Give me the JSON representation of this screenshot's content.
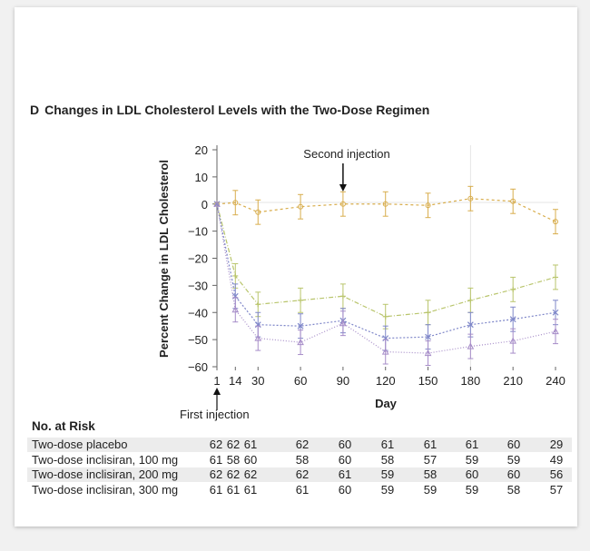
{
  "panel_letter": "D",
  "title": "Changes in LDL Cholesterol Levels with the Two-Dose Regimen",
  "chart_data": {
    "type": "line",
    "title": "Changes in LDL Cholesterol Levels with the Two-Dose Regimen",
    "xlabel": "Day",
    "ylabel": "Percent Change in LDL Cholesterol",
    "x": [
      1,
      14,
      30,
      60,
      90,
      120,
      150,
      180,
      210,
      240
    ],
    "xticks": [
      "1",
      "14",
      "30",
      "60",
      "90",
      "120",
      "150",
      "180",
      "210",
      "240"
    ],
    "yticks": [
      "20",
      "10",
      "0",
      "−10",
      "−20",
      "−30",
      "−40",
      "−50",
      "−60"
    ],
    "ylim": [
      -60,
      20
    ],
    "grid": false,
    "annotations": [
      "Second injection",
      "First injection"
    ],
    "series": [
      {
        "marker": "circle",
        "color": "#d8ad4c",
        "values": [
          0,
          0.5,
          -3,
          -1,
          0,
          0,
          -0.5,
          2,
          1,
          -6.5
        ],
        "error": 4.5
      },
      {
        "marker": "plus",
        "color": "#b9c56c",
        "values": [
          0,
          -26.5,
          -37,
          -35.5,
          -34,
          -41.5,
          -40,
          -35.5,
          -31.5,
          -27
        ],
        "error": 4.5
      },
      {
        "marker": "x",
        "color": "#7f87c9",
        "values": [
          0,
          -34,
          -44.5,
          -45,
          -43,
          -49.5,
          -49,
          -44.5,
          -42.5,
          -40
        ],
        "error": 4.5
      },
      {
        "marker": "triangle",
        "color": "#a68cc8",
        "values": [
          0,
          -39,
          -49.5,
          -51,
          -44,
          -54.5,
          -55,
          -52.5,
          -50.5,
          -47
        ],
        "error": 4.5
      }
    ]
  },
  "risk_table": {
    "heading": "No. at Risk",
    "rows": [
      {
        "label": "Two-dose placebo",
        "values": [
          "62",
          "62",
          "61",
          "62",
          "60",
          "61",
          "61",
          "61",
          "60",
          "29"
        ]
      },
      {
        "label": "Two-dose inclisiran, 100 mg",
        "values": [
          "61",
          "58",
          "60",
          "58",
          "60",
          "58",
          "57",
          "59",
          "59",
          "49"
        ]
      },
      {
        "label": "Two-dose inclisiran, 200 mg",
        "values": [
          "62",
          "62",
          "62",
          "62",
          "61",
          "59",
          "58",
          "60",
          "60",
          "56"
        ]
      },
      {
        "label": "Two-dose inclisiran, 300 mg",
        "values": [
          "61",
          "61",
          "61",
          "61",
          "60",
          "59",
          "59",
          "59",
          "58",
          "57"
        ]
      }
    ]
  }
}
